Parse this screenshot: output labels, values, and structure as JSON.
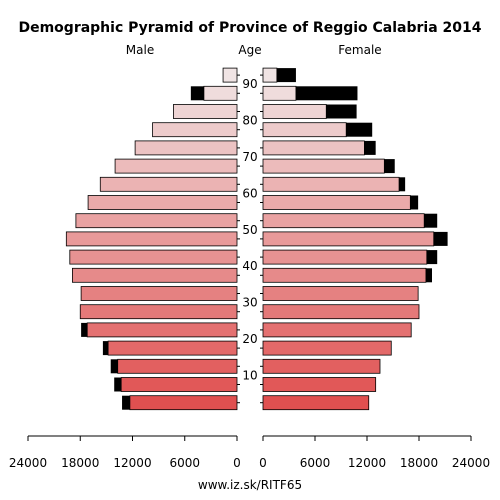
{
  "chart_data": {
    "type": "bar",
    "title": "Demographic Pyramid of Province of Reggio Calabria 2014",
    "left_label": "Male",
    "center_label": "Age",
    "right_label": "Female",
    "footer": "www.iz.sk/RITF65",
    "x_ticks_left": [
      "24000",
      "18000",
      "12000",
      "6000",
      "0"
    ],
    "x_ticks_right": [
      "0",
      "6000",
      "12000",
      "18000",
      "24000"
    ],
    "x_max": 24000,
    "age_ticks": [
      "10",
      "20",
      "30",
      "40",
      "50",
      "60",
      "70",
      "80",
      "90"
    ],
    "age_groups": [
      "0-4",
      "5-9",
      "10-14",
      "15-19",
      "20-24",
      "25-29",
      "30-34",
      "35-39",
      "40-44",
      "45-49",
      "50-54",
      "55-59",
      "60-64",
      "65-69",
      "70-74",
      "75-79",
      "80-84",
      "85-89",
      "90+"
    ],
    "series": [
      {
        "name": "Male",
        "values": [
          12300,
          13300,
          13700,
          14800,
          17200,
          18000,
          17900,
          18900,
          19200,
          19600,
          18500,
          17100,
          15700,
          14000,
          11700,
          9700,
          7300,
          3800,
          1600
        ],
        "excess": [
          900,
          800,
          800,
          600,
          700,
          0,
          0,
          0,
          0,
          0,
          0,
          0,
          0,
          0,
          0,
          0,
          0,
          1500,
          0
        ]
      },
      {
        "name": "Female",
        "values": [
          12200,
          13000,
          13500,
          14800,
          17100,
          18000,
          17900,
          18800,
          18900,
          19700,
          18600,
          17000,
          15700,
          14000,
          11700,
          9600,
          7300,
          3800,
          1600
        ],
        "excess": [
          0,
          0,
          0,
          0,
          0,
          0,
          0,
          700,
          1200,
          1600,
          1500,
          900,
          700,
          1200,
          1300,
          3000,
          3500,
          7100,
          2200
        ]
      }
    ],
    "colors": {
      "bar_young": "#e05050",
      "bar_old": "#f0e4e4",
      "excess": "#000000",
      "outline": "#000000"
    }
  }
}
